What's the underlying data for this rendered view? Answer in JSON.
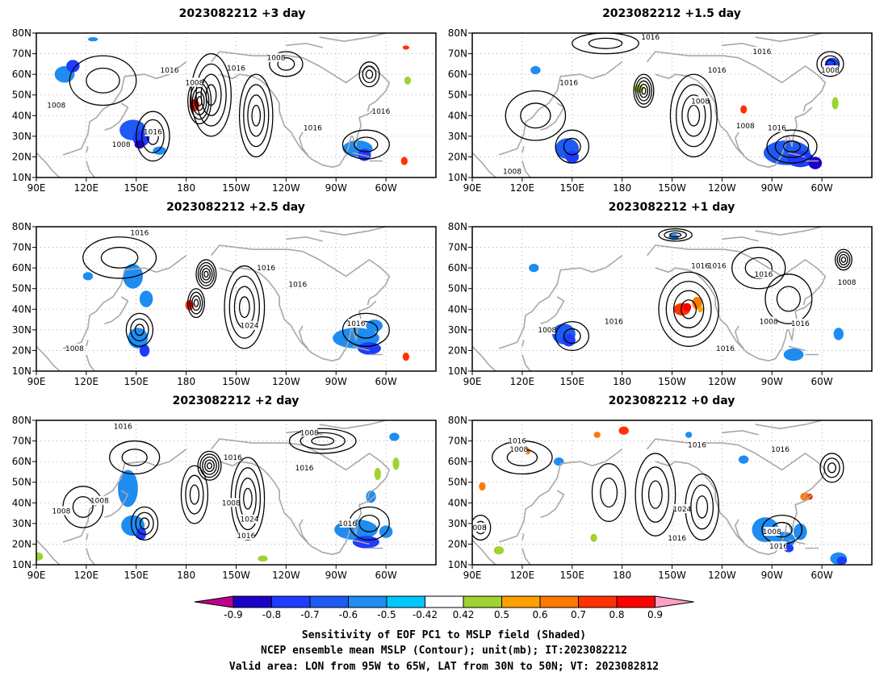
{
  "panels": [
    {
      "title": "2023082212 +3 day"
    },
    {
      "title": "2023082212 +1.5 day"
    },
    {
      "title": "2023082212 +2.5 day"
    },
    {
      "title": "2023082212 +1 day"
    },
    {
      "title": "2023082212 +2 day"
    },
    {
      "title": "2023082212 +0 day"
    }
  ],
  "map": {
    "lon_labels": [
      "90E",
      "120E",
      "150E",
      "180",
      "150W",
      "120W",
      "90W",
      "60W"
    ],
    "lat_labels": [
      "10N",
      "20N",
      "30N",
      "40N",
      "50N",
      "60N",
      "70N",
      "80N"
    ]
  },
  "contour_labels": [
    [
      {
        "t": "1016",
        "lon": 170,
        "lat": 62
      },
      {
        "t": "1008",
        "lon": 185,
        "lat": 56
      },
      {
        "t": "1016",
        "lon": 210,
        "lat": 63
      },
      {
        "t": "1008",
        "lon": 234,
        "lat": 68
      },
      {
        "t": "1008",
        "lon": 102,
        "lat": 45
      },
      {
        "t": "1008",
        "lon": 141,
        "lat": 26
      },
      {
        "t": "1016",
        "lon": 160,
        "lat": 32
      },
      {
        "t": "1016",
        "lon": 256,
        "lat": 34
      },
      {
        "t": "1016",
        "lon": 297,
        "lat": 42
      }
    ],
    [
      {
        "t": "1016",
        "lon": 197,
        "lat": 78
      },
      {
        "t": "1016",
        "lon": 264,
        "lat": 71
      },
      {
        "t": "1016",
        "lon": 148,
        "lat": 56
      },
      {
        "t": "1016",
        "lon": 237,
        "lat": 62
      },
      {
        "t": "1008",
        "lon": 227,
        "lat": 47
      },
      {
        "t": "1008",
        "lon": 254,
        "lat": 35
      },
      {
        "t": "1016",
        "lon": 273,
        "lat": 34
      },
      {
        "t": "1008",
        "lon": 305,
        "lat": 62
      },
      {
        "t": "1008",
        "lon": 114,
        "lat": 13
      }
    ],
    [
      {
        "t": "1016",
        "lon": 152,
        "lat": 77
      },
      {
        "t": "1016",
        "lon": 228,
        "lat": 60
      },
      {
        "t": "1016",
        "lon": 247,
        "lat": 52
      },
      {
        "t": "1024",
        "lon": 218,
        "lat": 32
      },
      {
        "t": "1008",
        "lon": 113,
        "lat": 21
      },
      {
        "t": "1016",
        "lon": 282,
        "lat": 33
      }
    ],
    [
      {
        "t": "1016",
        "lon": 227,
        "lat": 61
      },
      {
        "t": "1016",
        "lon": 237,
        "lat": 61
      },
      {
        "t": "1016",
        "lon": 265,
        "lat": 57
      },
      {
        "t": "1008",
        "lon": 315,
        "lat": 53
      },
      {
        "t": "1008",
        "lon": 135,
        "lat": 30
      },
      {
        "t": "1016",
        "lon": 175,
        "lat": 34
      },
      {
        "t": "1008",
        "lon": 268,
        "lat": 34
      },
      {
        "t": "1016",
        "lon": 287,
        "lat": 33
      },
      {
        "t": "1016",
        "lon": 242,
        "lat": 21
      }
    ],
    [
      {
        "t": "1016",
        "lon": 142,
        "lat": 77
      },
      {
        "t": "1008",
        "lon": 254,
        "lat": 74
      },
      {
        "t": "1016",
        "lon": 208,
        "lat": 62
      },
      {
        "t": "1016",
        "lon": 251,
        "lat": 57
      },
      {
        "t": "1008",
        "lon": 207,
        "lat": 40
      },
      {
        "t": "1024",
        "lon": 218,
        "lat": 32
      },
      {
        "t": "1016",
        "lon": 216,
        "lat": 24
      },
      {
        "t": "1008",
        "lon": 105,
        "lat": 36
      },
      {
        "t": "1008",
        "lon": 128,
        "lat": 41
      },
      {
        "t": "1016",
        "lon": 277,
        "lat": 30
      }
    ],
    [
      {
        "t": "1016",
        "lon": 117,
        "lat": 70
      },
      {
        "t": "1008",
        "lon": 118,
        "lat": 66
      },
      {
        "t": "1016",
        "lon": 225,
        "lat": 68
      },
      {
        "t": "1016",
        "lon": 275,
        "lat": 66
      },
      {
        "t": "1024",
        "lon": 216,
        "lat": 37
      },
      {
        "t": "1016",
        "lon": 213,
        "lat": 23
      },
      {
        "t": "1008",
        "lon": 270,
        "lat": 26
      },
      {
        "t": "1016",
        "lon": 274,
        "lat": 19
      },
      {
        "t": "1008",
        "lon": 93,
        "lat": 28
      }
    ]
  ],
  "colorbar": {
    "levels": [
      "-0.9",
      "-0.8",
      "-0.7",
      "-0.6",
      "-0.5",
      "-0.42",
      "0.42",
      "0.5",
      "0.6",
      "0.7",
      "0.8",
      "0.9"
    ],
    "colors": [
      "#c0008a",
      "#1a00c8",
      "#1e3cff",
      "#1f5af5",
      "#1e8cf0",
      "#00c8ff",
      "#ffffff",
      "#a0d232",
      "#ffa000",
      "#ff7800",
      "#ff3200",
      "#ff0000",
      "#ffa0c8"
    ]
  },
  "caption": [
    "Sensitivity of EOF PC1 to MSLP field (Shaded)",
    "NCEP ensemble mean MSLP (Contour); unit(mb); IT:2023082212",
    "Valid area: LON from 95W to 65W, LAT from 30N to 50N; VT: 2023082812"
  ]
}
